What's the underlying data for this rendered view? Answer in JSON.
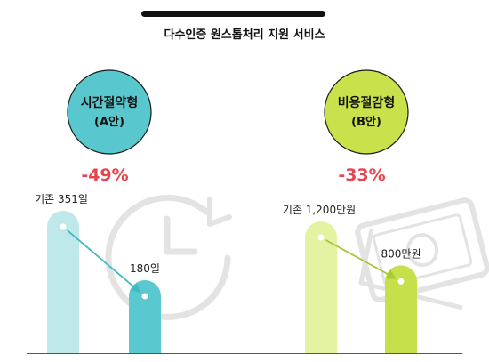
{
  "title": "다수인증 원스톱처리 지원 서비스",
  "colors": {
    "a_light": "#bfe8ea",
    "a_dark": "#5ac9cf",
    "a_circle": "#59c7ce",
    "b_light": "#e2f3a1",
    "b_dark": "#c5e04a",
    "b_circle": "#c9e24b",
    "pct": "#e8444f",
    "text": "#111111",
    "baseline": "#555555",
    "arrow_a": "#3fbcc2",
    "arrow_b": "#a8c83a",
    "deco": "#e3e3e3"
  },
  "icons": {
    "a_background": "clock-icon",
    "b_background": "money-bills-icon"
  },
  "chart_data": [
    {
      "type": "bar",
      "group_label": [
        "시간절약형",
        "(A안)"
      ],
      "change_label": "-49%",
      "bars": [
        {
          "value": 351,
          "label": "기존 351일"
        },
        {
          "value": 180,
          "label": "180일"
        }
      ],
      "unit": "일"
    },
    {
      "type": "bar",
      "group_label": [
        "비용절감형",
        "(B안)"
      ],
      "change_label": "-33%",
      "bars": [
        {
          "value": 1200,
          "label": "기존 1,200만원"
        },
        {
          "value": 800,
          "label": "800만원"
        }
      ],
      "unit": "만원"
    }
  ]
}
